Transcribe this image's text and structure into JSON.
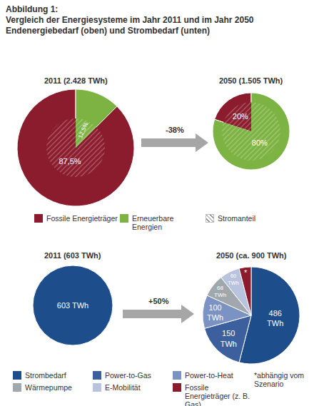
{
  "title_lines": [
    "Abbildung 1:",
    "Vergleich der Energiesysteme im Jahr 2011 und im Jahr 2050",
    "Endenergiebedarf (oben) und Strombedarf (unten)"
  ],
  "hatch_label": "Stromanteil",
  "arrows": [
    "-38%",
    "+50%"
  ],
  "footnote": "*abhängig vom Szenario",
  "chart_data": [
    {
      "type": "pie",
      "title": "2011 (2.428 TWh)",
      "categories": [
        "Fossile Energieträger",
        "Erneuerbare Energien"
      ],
      "values": [
        87.5,
        12.5
      ],
      "value_labels": [
        "87,5%",
        "12,5%"
      ],
      "colors": [
        "#8b1c2e",
        "#7cb342"
      ],
      "data_labels": true,
      "legend": "bottom",
      "inner_share": 25
    },
    {
      "type": "pie",
      "title": "2050 (1.505 TWh)",
      "categories": [
        "Fossile Energieträger",
        "Erneuerbare Energien"
      ],
      "values": [
        20,
        80
      ],
      "value_labels": [
        "20%",
        "80%"
      ],
      "colors": [
        "#8b1c2e",
        "#7cb342"
      ],
      "data_labels": true,
      "legend": "bottom",
      "inner_share": 57
    },
    {
      "type": "pie",
      "title": "2011 (603 TWh)",
      "categories": [
        "Strombedarf"
      ],
      "values": [
        603
      ],
      "value_labels": [
        "603 TWh"
      ],
      "colors": [
        "#1e4d8c"
      ],
      "data_labels": true,
      "legend": "bottom"
    },
    {
      "type": "pie",
      "title": "2050 (ca. 900 TWh)",
      "categories": [
        "Strombedarf",
        "Power-to-Gas",
        "Power-to-Heat",
        "Wärmepumpe",
        "E-Mobilität",
        "Fossile Energieträger (z. B. Gas)"
      ],
      "values": [
        486,
        150,
        100,
        68,
        60,
        36
      ],
      "value_labels": [
        "486 TWh",
        "150 TWh",
        "100 TWh",
        "68 TWh",
        "60 TWh",
        "*"
      ],
      "colors": [
        "#1e4d8c",
        "#3c5f9d",
        "#7b93c2",
        "#a0a8ae",
        "#b8c4dd",
        "#8b1c2e"
      ],
      "data_labels": true,
      "legend": "bottom"
    }
  ]
}
